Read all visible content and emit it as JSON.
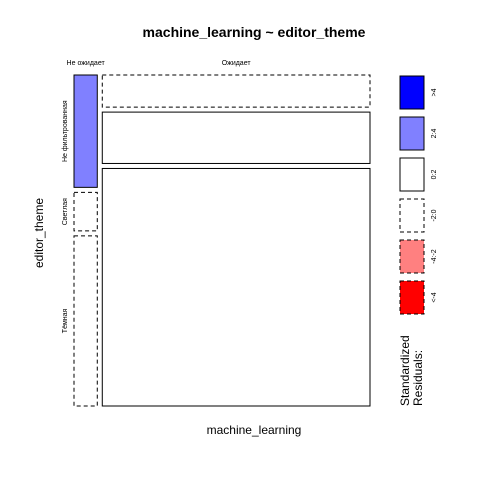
{
  "chart_data": {
    "type": "mosaic",
    "title": "machine_learning ~ editor_theme",
    "xlabel": "machine_learning",
    "ylabel": "editor_theme",
    "x_categories": [
      "Не ожидает",
      "Ожидает"
    ],
    "y_categories": [
      "Не фильтрованная",
      "Светлая",
      "Тёмная"
    ],
    "x_proportions": [
      0.08,
      0.92
    ],
    "y_proportions_within_x": [
      [
        0.35,
        0.12,
        0.53
      ],
      [
        0.1,
        0.16,
        0.74
      ]
    ],
    "residual_classes": [
      [
        "2:4",
        "-2:0",
        "-2:0"
      ],
      [
        "-2:0",
        "0:2",
        "0:2"
      ]
    ],
    "legend": {
      "title_lines": [
        "Standardized",
        "Residuals:"
      ],
      "items": [
        {
          "label": ">4",
          "color": "#0000FF",
          "border": "solid"
        },
        {
          "label": "2:4",
          "color": "#8080FF",
          "border": "solid"
        },
        {
          "label": "0:2",
          "color": "#FFFFFF",
          "border": "solid"
        },
        {
          "label": "-2:0",
          "color": "#FFFFFF",
          "border": "dashed"
        },
        {
          "label": "-4:-2",
          "color": "#FF8080",
          "border": "dashed"
        },
        {
          "label": "<-4",
          "color": "#FF0000",
          "border": "dashed"
        }
      ]
    }
  }
}
